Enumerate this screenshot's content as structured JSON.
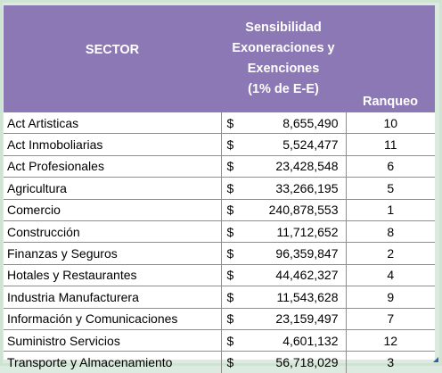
{
  "header": {
    "sector": "SECTOR",
    "sensitivity_lines": [
      "Sensibilidad",
      "Exoneraciones y",
      "Exenciones",
      "(1% de E-E)"
    ],
    "rank": "Ranqueo"
  },
  "currency_symbol": "$",
  "rows": [
    {
      "sector": "Act Artisticas",
      "amount": "8,655,490",
      "rank": "10"
    },
    {
      "sector": "Act Inmoboliarias",
      "amount": "5,524,477",
      "rank": "11"
    },
    {
      "sector": "Act Profesionales",
      "amount": "23,428,548",
      "rank": "6"
    },
    {
      "sector": "Agricultura",
      "amount": "33,266,195",
      "rank": "5"
    },
    {
      "sector": "Comercio",
      "amount": "240,878,553",
      "rank": "1"
    },
    {
      "sector": "Construcción",
      "amount": "11,712,652",
      "rank": "8"
    },
    {
      "sector": "Finanzas y Seguros",
      "amount": "96,359,847",
      "rank": "2"
    },
    {
      "sector": "Hotales y Restaurantes",
      "amount": "44,462,327",
      "rank": "4"
    },
    {
      "sector": "Industria Manufacturera",
      "amount": "11,543,628",
      "rank": "9"
    },
    {
      "sector": "Información y Comunicaciones",
      "amount": "23,159,497",
      "rank": "7"
    },
    {
      "sector": "Suministro Servicios",
      "amount": "4,601,132",
      "rank": "12"
    },
    {
      "sector": "Transporte y Almacenamiento",
      "amount": "56,718,029",
      "rank": "3"
    }
  ],
  "colors": {
    "header_bg": "#8c78b4",
    "header_text": "#ffffff",
    "page_bg": "#dcebdf"
  }
}
